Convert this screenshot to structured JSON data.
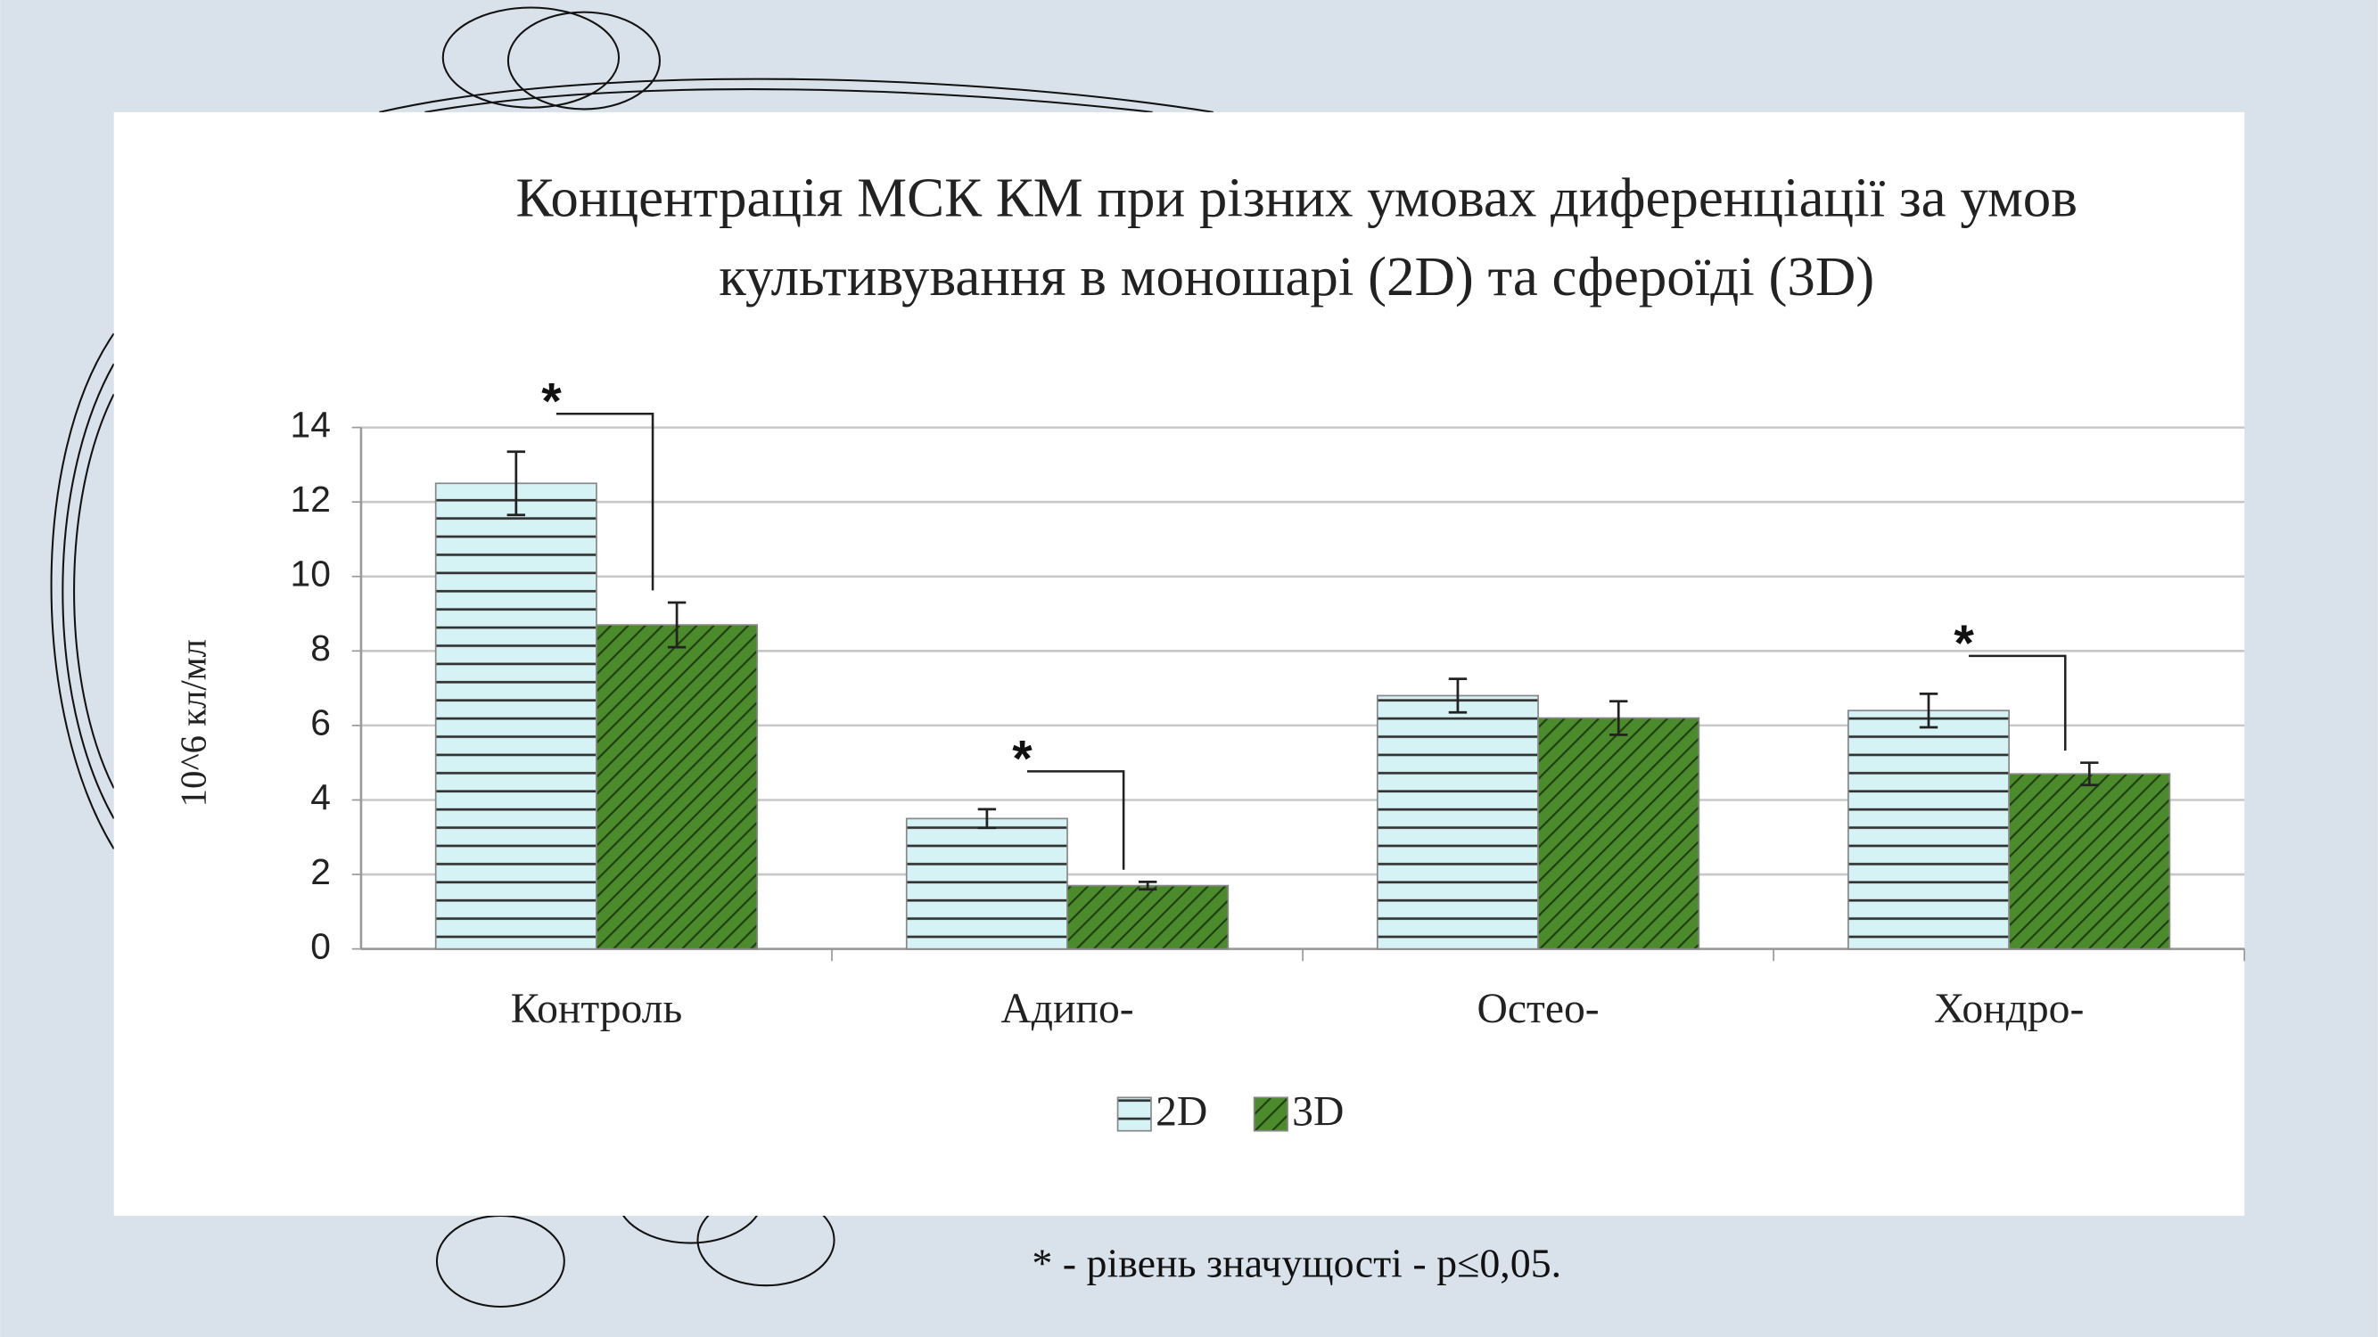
{
  "chart_data": {
    "type": "bar",
    "title": [
      "Концентрація МСК КМ при різних умовах диференціації за умов",
      "культивування в моношарі (2D) та сфероїді (3D)"
    ],
    "y_label": "10^6 кл/мл",
    "categories": [
      "Контроль",
      "Адипо-",
      "Остео-",
      "Хондро-"
    ],
    "series": [
      {
        "name": "2D",
        "color": "#d5f2f4",
        "values": [
          12.5,
          3.5,
          6.8,
          6.4
        ],
        "errors": [
          0.85,
          0.25,
          0.45,
          0.45
        ]
      },
      {
        "name": "3D",
        "color": "#4b8b2b",
        "values": [
          8.7,
          1.7,
          6.2,
          4.7
        ],
        "errors": [
          0.6,
          0.1,
          0.45,
          0.3
        ]
      }
    ],
    "ylim": [
      0,
      14
    ],
    "yticks": [
      0,
      2,
      4,
      6,
      8,
      10,
      12,
      14
    ],
    "grid": true,
    "legend": "bottom",
    "annotations": [
      "*",
      "*",
      "*"
    ],
    "footnote": "* - рівень значущості - p≤0,05."
  }
}
